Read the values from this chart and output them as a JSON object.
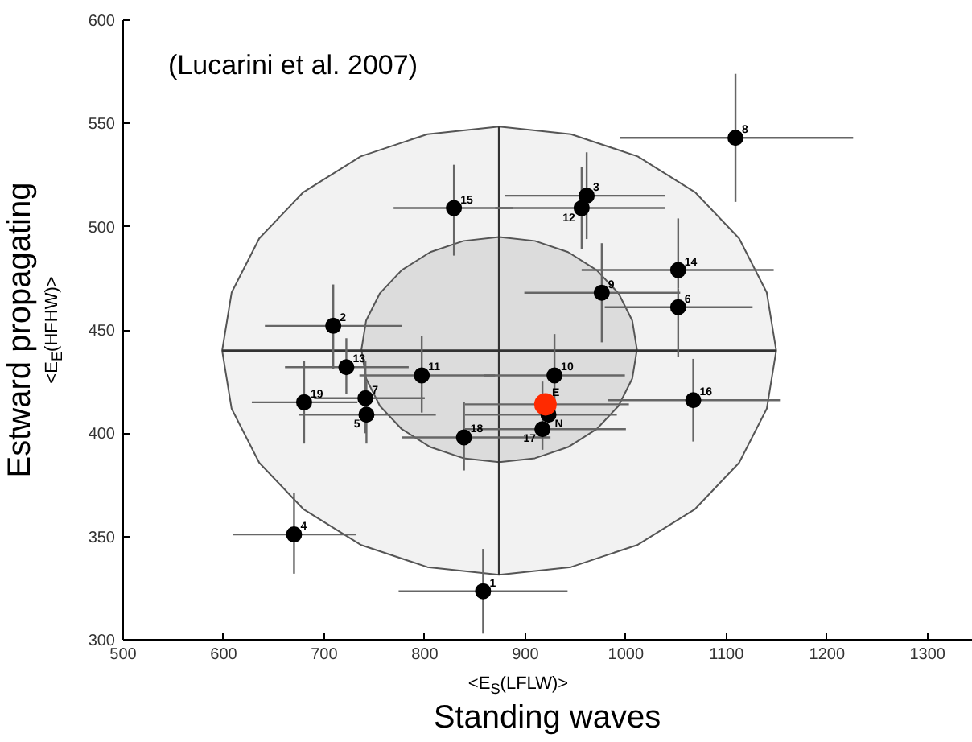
{
  "chart_data": {
    "type": "scatter",
    "xlabel": "Standing waves",
    "ylabel": "Estward propagating",
    "xlim": [
      500,
      1345
    ],
    "ylim": [
      300,
      600
    ],
    "xticks": [
      500,
      600,
      700,
      800,
      900,
      1000,
      1100,
      1200,
      1300
    ],
    "yticks": [
      300,
      350,
      400,
      450,
      500,
      550,
      600
    ],
    "grid": false,
    "marker": "circle",
    "series": [
      {
        "type": "area",
        "marker": "none",
        "color": "#f2f2f2",
        "x": [
          1149.5,
          1140.1,
          1112.6,
          1068.8,
          1011.8,
          945.4,
          874,
          802.6,
          736.2,
          679.2,
          635.4,
          607.9,
          598.5,
          607.9,
          635.4,
          679.2,
          736.2,
          802.6,
          874,
          945.4,
          1011.8,
          1068.8,
          1112.6,
          1140.1
        ],
        "values": [
          440,
          468.1,
          494.3,
          516.7,
          534,
          544.8,
          548.5,
          544.8,
          534,
          516.7,
          494.3,
          468.1,
          440,
          411.9,
          385.7,
          363.3,
          346,
          335.2,
          331.5,
          335.2,
          346,
          363.3,
          385.7,
          411.9
        ]
      },
      {
        "type": "area",
        "marker": "none",
        "color": "#dcdcdc",
        "x": [
          1011,
          1006.3,
          992.6,
          970.9,
          942.5,
          909.5,
          874,
          838.5,
          805.5,
          777.1,
          755.4,
          741.7,
          737,
          741.7,
          755.4,
          777.1,
          805.5,
          838.5,
          874,
          909.5,
          942.5,
          970.9,
          992.6,
          1006.3
        ],
        "values": [
          440.5,
          454.6,
          467.8,
          479,
          487.7,
          493.1,
          495,
          493.1,
          487.7,
          479,
          467.8,
          454.6,
          440.5,
          426.4,
          413.2,
          402,
          393.3,
          387.9,
          386,
          387.9,
          393.3,
          402,
          413.2,
          426.4
        ]
      },
      {
        "type": "line",
        "marker": "none",
        "color": "#333333",
        "x": [
          598.5,
          874,
          1149.5
        ],
        "values": [
          440,
          440,
          440
        ]
      },
      {
        "type": "line",
        "marker": "none",
        "color": "#333333",
        "x": [
          874,
          874,
          874
        ],
        "values": [
          331.5,
          440,
          548.5
        ]
      },
      {
        "type": "scatter",
        "color": "#000000",
        "x": [
          858,
          709,
          961,
          670,
          742,
          1052,
          741,
          1109,
          976,
          929,
          797,
          956,
          722,
          1052,
          829,
          1067,
          917,
          839,
          680,
          923
        ],
        "values": [
          323.5,
          452,
          515,
          351,
          409,
          461,
          417,
          543,
          468,
          428,
          428,
          509,
          432,
          479,
          509,
          416,
          402,
          398,
          415,
          409
        ],
        "xerrors": [
          [
            774,
            942
          ],
          [
            641,
            777
          ],
          [
            880,
            1039
          ],
          [
            609,
            732
          ],
          [
            675,
            811
          ],
          [
            979,
            1126
          ],
          [
            690,
            800
          ],
          [
            994,
            1226
          ],
          [
            899,
            1054
          ],
          [
            859,
            999
          ],
          [
            735,
            870
          ],
          [
            870,
            1039
          ],
          [
            661,
            784
          ],
          [
            956,
            1147
          ],
          [
            769,
            888
          ],
          [
            982,
            1154
          ],
          [
            840,
            1000
          ],
          [
            777,
            925
          ],
          [
            628,
            733
          ],
          [
            840,
            991
          ]
        ],
        "errors": [
          [
            303,
            344
          ],
          [
            431,
            472
          ],
          [
            494,
            536
          ],
          [
            332,
            371
          ],
          [
            395,
            425
          ],
          [
            437,
            470
          ],
          [
            400,
            435
          ],
          [
            512,
            574
          ],
          [
            444,
            492
          ],
          [
            410,
            448
          ],
          [
            410,
            447
          ],
          [
            489,
            529
          ],
          [
            419,
            446
          ],
          [
            470,
            504
          ],
          [
            486,
            530
          ],
          [
            396,
            436
          ],
          [
            392,
            425
          ],
          [
            382,
            415
          ],
          [
            395,
            435
          ],
          null
        ]
      },
      {
        "type": "scatter",
        "color": "#ff2a00",
        "x": [
          920
        ],
        "values": [
          414
        ],
        "xerrors": [
          [
            840,
            1003
          ]
        ]
      }
    ],
    "annotations": [
      "(Lucarini et al. 2007)",
      "<E$_{S}$(LFLW)>",
      "<E$_{E}$(HFHW)>",
      {
        "text": "1",
        "x": 858,
        "y": 323.5
      },
      {
        "text": "2",
        "x": 709,
        "y": 452
      },
      {
        "text": "3",
        "x": 961,
        "y": 515
      },
      {
        "text": "4",
        "x": 670,
        "y": 351
      },
      {
        "text": "5",
        "x": 742,
        "y": 409
      },
      {
        "text": "6",
        "x": 1052,
        "y": 461
      },
      {
        "text": "7",
        "x": 741,
        "y": 417
      },
      {
        "text": "8",
        "x": 1109,
        "y": 543
      },
      {
        "text": "9",
        "x": 976,
        "y": 468
      },
      {
        "text": "10",
        "x": 929,
        "y": 428
      },
      {
        "text": "11",
        "x": 797,
        "y": 428
      },
      {
        "text": "12",
        "x": 956,
        "y": 509
      },
      {
        "text": "13",
        "x": 722,
        "y": 432
      },
      {
        "text": "14",
        "x": 1052,
        "y": 479
      },
      {
        "text": "15",
        "x": 829,
        "y": 509
      },
      {
        "text": "16",
        "x": 1067,
        "y": 416
      },
      {
        "text": "17",
        "x": 917,
        "y": 402
      },
      {
        "text": "18",
        "x": 839,
        "y": 398
      },
      {
        "text": "19",
        "x": 680,
        "y": 415
      },
      {
        "text": "N",
        "x": 923,
        "y": 409
      },
      {
        "text": "E",
        "x": 920,
        "y": 414
      }
    ]
  }
}
